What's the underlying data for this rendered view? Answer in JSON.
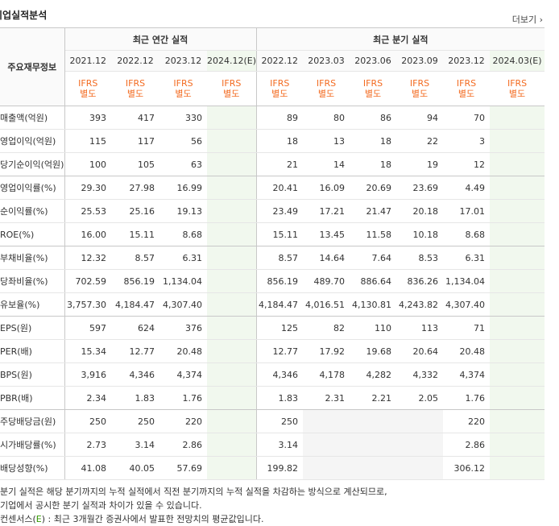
{
  "header": {
    "title": "기업실적분석",
    "more": "더보기"
  },
  "table": {
    "group_annual": "최근 연간 실적",
    "group_quarter": "최근 분기 실적",
    "row_header": "주요재무정보",
    "annual_dates": [
      "2021.12",
      "2022.12",
      "2023.12",
      "2024.12(E)"
    ],
    "quarter_dates": [
      "2022.12",
      "2023.03",
      "2023.06",
      "2023.09",
      "2023.12",
      "2024.03(E)"
    ],
    "ifrs_line1": "IFRS",
    "ifrs_line2": "별도",
    "rows": [
      {
        "label": "매출액(억원)",
        "a": [
          "393",
          "417",
          "330",
          ""
        ],
        "q": [
          "89",
          "80",
          "86",
          "94",
          "70",
          ""
        ]
      },
      {
        "label": "영업이익(억원)",
        "a": [
          "115",
          "117",
          "56",
          ""
        ],
        "q": [
          "18",
          "13",
          "18",
          "22",
          "3",
          ""
        ]
      },
      {
        "label": "당기순이익(억원)",
        "a": [
          "100",
          "105",
          "63",
          ""
        ],
        "q": [
          "21",
          "14",
          "18",
          "19",
          "12",
          ""
        ]
      },
      {
        "label": "영업이익률(%)",
        "a": [
          "29.30",
          "27.98",
          "16.99",
          ""
        ],
        "q": [
          "20.41",
          "16.09",
          "20.69",
          "23.69",
          "4.49",
          ""
        ]
      },
      {
        "label": "순이익률(%)",
        "a": [
          "25.53",
          "25.16",
          "19.13",
          ""
        ],
        "q": [
          "23.49",
          "17.21",
          "21.47",
          "20.18",
          "17.01",
          ""
        ]
      },
      {
        "label": "ROE(%)",
        "a": [
          "16.00",
          "15.11",
          "8.68",
          ""
        ],
        "q": [
          "15.11",
          "13.45",
          "11.58",
          "10.18",
          "8.68",
          ""
        ]
      },
      {
        "label": "부채비율(%)",
        "a": [
          "12.32",
          "8.57",
          "6.31",
          ""
        ],
        "q": [
          "8.57",
          "14.64",
          "7.64",
          "8.53",
          "6.31",
          ""
        ]
      },
      {
        "label": "당좌비율(%)",
        "a": [
          "702.59",
          "856.19",
          "1,134.04",
          ""
        ],
        "q": [
          "856.19",
          "489.70",
          "886.64",
          "836.26",
          "1,134.04",
          ""
        ]
      },
      {
        "label": "유보율(%)",
        "a": [
          "3,757.30",
          "4,184.47",
          "4,307.40",
          ""
        ],
        "q": [
          "4,184.47",
          "4,016.51",
          "4,130.81",
          "4,243.82",
          "4,307.40",
          ""
        ]
      },
      {
        "label": "EPS(원)",
        "a": [
          "597",
          "624",
          "376",
          ""
        ],
        "q": [
          "125",
          "82",
          "110",
          "113",
          "71",
          ""
        ]
      },
      {
        "label": "PER(배)",
        "a": [
          "15.34",
          "12.77",
          "20.48",
          ""
        ],
        "q": [
          "12.77",
          "17.92",
          "19.68",
          "20.64",
          "20.48",
          ""
        ]
      },
      {
        "label": "BPS(원)",
        "a": [
          "3,916",
          "4,346",
          "4,374",
          ""
        ],
        "q": [
          "4,346",
          "4,178",
          "4,282",
          "4,332",
          "4,374",
          ""
        ]
      },
      {
        "label": "PBR(배)",
        "a": [
          "2.34",
          "1.83",
          "1.76",
          ""
        ],
        "q": [
          "1.83",
          "2.31",
          "2.21",
          "2.05",
          "1.76",
          ""
        ]
      },
      {
        "label": "주당배당금(원)",
        "a": [
          "250",
          "250",
          "220",
          ""
        ],
        "q": [
          "250",
          "",
          "",
          "",
          "220",
          ""
        ]
      },
      {
        "label": "시가배당률(%)",
        "a": [
          "2.73",
          "3.14",
          "2.86",
          ""
        ],
        "q": [
          "3.14",
          "",
          "",
          "",
          "2.86",
          ""
        ]
      },
      {
        "label": "배당성향(%)",
        "a": [
          "41.08",
          "40.05",
          "57.69",
          ""
        ],
        "q": [
          "199.82",
          "",
          "",
          "",
          "306.12",
          ""
        ]
      }
    ]
  },
  "notes": {
    "line1": "분기 실적은 해당 분기까지의 누적 실적에서 직전 분기까지의 누적 실적을 차감하는 방식으로 계산되므로,",
    "line2": "기업에서 공시한 분기 실적과 차이가 있을 수 있습니다.",
    "line3_prefix": "컨센서스(",
    "line3_e": "E",
    "line3_suffix": ") : 최근 3개월간 증권사에서 발표한 전망치의 평균값입니다."
  }
}
